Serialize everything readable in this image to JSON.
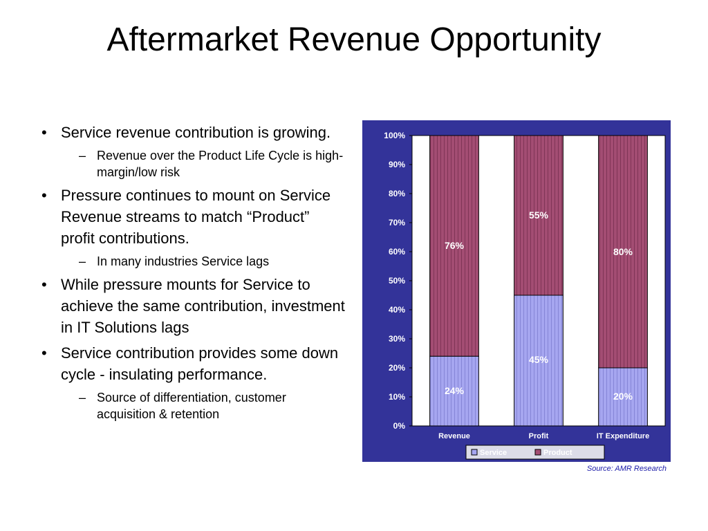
{
  "slide": {
    "title": "Aftermarket Revenue Opportunity",
    "source": "Source:  AMR Research"
  },
  "bullets": [
    {
      "marker": "•",
      "text": "Service revenue contribution is growing.",
      "subs": [
        {
          "marker": "–",
          "text": "Revenue over the Product Life Cycle is high-margin/low risk"
        }
      ]
    },
    {
      "marker": "•",
      "text": "Pressure continues to mount on Service Revenue streams to match “Product” profit contributions.",
      "subs": [
        {
          "marker": "–",
          "text": "In many industries Service lags"
        }
      ]
    },
    {
      "marker": "•",
      "text": "While pressure mounts for Service to achieve the same contribution, investment in IT Solutions lags",
      "subs": []
    },
    {
      "marker": "•",
      "text": "Service contribution provides some down cycle - insulating performance.",
      "subs": [
        {
          "marker": "–",
          "text": "Source of differentiation, customer acquisition & retention"
        }
      ]
    }
  ],
  "chart_data": {
    "type": "bar",
    "stacked": true,
    "percent": true,
    "categories": [
      "Revenue",
      "Profit",
      "IT Expenditure"
    ],
    "series": [
      {
        "name": "Service",
        "values": [
          24,
          45,
          20
        ],
        "labels": [
          "24%",
          "45%",
          "20%"
        ],
        "color": "#a6a6f0"
      },
      {
        "name": "Product",
        "values": [
          76,
          55,
          80
        ],
        "labels": [
          "76%",
          "55%",
          "80%"
        ],
        "color": "#a34d73"
      }
    ],
    "ylim": [
      0,
      100
    ],
    "yticks": [
      "0%",
      "10%",
      "20%",
      "30%",
      "40%",
      "50%",
      "60%",
      "70%",
      "80%",
      "90%",
      "100%"
    ],
    "grid": false,
    "legend": "bottom",
    "colors": {
      "frame": "#333399",
      "plot_bg": "#ffffff",
      "text": "#ffffff"
    }
  }
}
